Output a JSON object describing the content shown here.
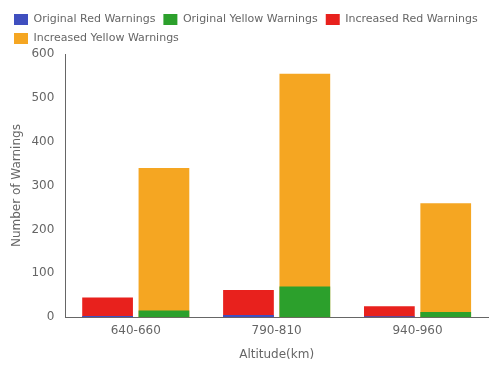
{
  "chart_data": {
    "type": "bar",
    "xlabel": "Altitude(km)",
    "ylabel": "Number of Warnings",
    "categories": [
      "640-660",
      "790-810",
      "940-960"
    ],
    "series": [
      {
        "name": "Increased Red Warnings",
        "color": "#e8211d",
        "values": [
          45,
          62,
          25
        ]
      },
      {
        "name": "Original Red Warnings",
        "color": "#3f4fbf",
        "values": [
          3,
          5,
          2
        ]
      },
      {
        "name": "Increased Yellow Warnings",
        "color": "#f5a622",
        "values": [
          340,
          555,
          260
        ]
      },
      {
        "name": "Original Yellow Warnings",
        "color": "#2ca02c",
        "values": [
          15,
          70,
          12
        ]
      }
    ],
    "ylim": [
      0,
      600
    ],
    "yticks": [
      0,
      100,
      200,
      300,
      400,
      500,
      600
    ],
    "grid": false,
    "legend": "upper left"
  }
}
